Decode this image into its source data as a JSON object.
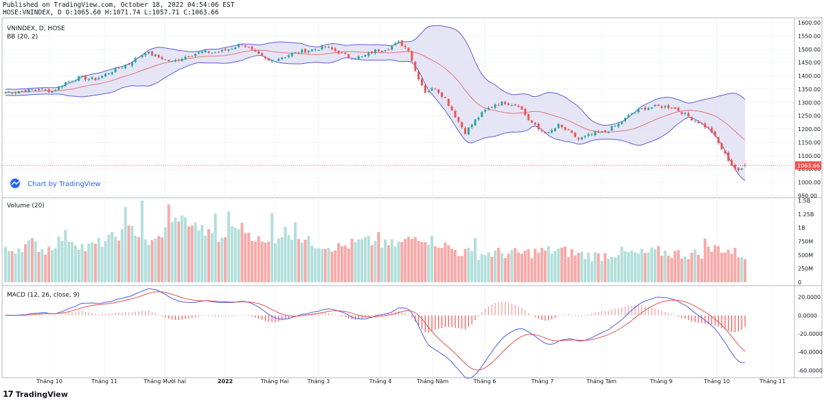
{
  "header": {
    "published": "Published on TradingView.com, October 18, 2022 04:54:06 EST",
    "symbol_line": "HOSE:VNINDEX, D O:1065.60 H:1071.74 L:1057.71 C:1063.66"
  },
  "footer": {
    "mark": "17",
    "brand": "TradingView"
  },
  "colors": {
    "up": "#26a69a",
    "down": "#ef5350",
    "up_volume": "#b2dfdb",
    "down_volume": "#f7a9a7",
    "bb_fill": "#e0e0f4",
    "bb_band": "#5b5bd6",
    "bb_basis": "#e57373",
    "macd_line": "#4a5ae8",
    "signal_line": "#e05050",
    "price_line": "#ef5350",
    "grid": "#f0f3fa",
    "border": "#b2b5be"
  },
  "chart_data": [
    {
      "type": "candlestick",
      "title": "VNINDEX, D, HOSE",
      "indicator_label": "BB (20, 2)",
      "watermark": "Chart by TradingView",
      "last_price": 1063.66,
      "last_price_label": "1063.66",
      "ylim": [
        950,
        1600
      ],
      "y_ticks": [
        "1600.00",
        "1550.00",
        "1500.00",
        "1450.00",
        "1400.00",
        "1350.00",
        "1300.00",
        "1250.00",
        "1200.00",
        "1150.00",
        "1100.00",
        "1050.00",
        "1000.00",
        "950.00"
      ],
      "x_labels": [
        "Tháng 10",
        "Tháng 11",
        "Tháng Mười hai",
        "2022",
        "Tháng Hai",
        "Tháng 3",
        "Tháng 4",
        "Tháng Năm",
        "Tháng 6",
        "Tháng 7",
        "Tháng Tám",
        "Tháng 9",
        "Tháng 10",
        "Tháng 11"
      ],
      "close_anchors": [
        [
          0,
          1338
        ],
        [
          10,
          1350
        ],
        [
          14,
          1342
        ],
        [
          18,
          1375
        ],
        [
          22,
          1393
        ],
        [
          27,
          1388
        ],
        [
          32,
          1418
        ],
        [
          37,
          1445
        ],
        [
          42,
          1490
        ],
        [
          46,
          1470
        ],
        [
          50,
          1452
        ],
        [
          55,
          1478
        ],
        [
          59,
          1490
        ],
        [
          63,
          1488
        ],
        [
          67,
          1500
        ],
        [
          71,
          1520
        ],
        [
          75,
          1485
        ],
        [
          79,
          1455
        ],
        [
          83,
          1470
        ],
        [
          88,
          1490
        ],
        [
          92,
          1498
        ],
        [
          96,
          1508
        ],
        [
          100,
          1490
        ],
        [
          103,
          1470
        ],
        [
          107,
          1470
        ],
        [
          111,
          1495
        ],
        [
          115,
          1505
        ],
        [
          118,
          1525
        ],
        [
          121,
          1500
        ],
        [
          123,
          1420
        ],
        [
          126,
          1340
        ],
        [
          129,
          1355
        ],
        [
          132,
          1315
        ],
        [
          135,
          1250
        ],
        [
          138,
          1188
        ],
        [
          141,
          1233
        ],
        [
          144,
          1270
        ],
        [
          147,
          1295
        ],
        [
          150,
          1300
        ],
        [
          154,
          1290
        ],
        [
          157,
          1236
        ],
        [
          160,
          1199
        ],
        [
          163,
          1184
        ],
        [
          166,
          1213
        ],
        [
          169,
          1190
        ],
        [
          172,
          1162
        ],
        [
          176,
          1180
        ],
        [
          180,
          1190
        ],
        [
          184,
          1218
        ],
        [
          188,
          1260
        ],
        [
          192,
          1280
        ],
        [
          196,
          1285
        ],
        [
          200,
          1283
        ],
        [
          203,
          1264
        ],
        [
          206,
          1240
        ],
        [
          209,
          1220
        ],
        [
          212,
          1190
        ],
        [
          215,
          1125
        ],
        [
          218,
          1065
        ],
        [
          220,
          1040
        ],
        [
          222,
          1063.66
        ]
      ],
      "bb_period": 20,
      "bb_mult": 2
    },
    {
      "type": "bar",
      "title": "Volume (20)",
      "ylim": [
        0,
        1500000000
      ],
      "y_ticks": [
        "1.5B",
        "1.25B",
        "1B",
        "750M",
        "500M",
        "250M",
        "0"
      ],
      "volume_anchors": [
        [
          0,
          560
        ],
        [
          8,
          720
        ],
        [
          12,
          580
        ],
        [
          18,
          860
        ],
        [
          24,
          620
        ],
        [
          30,
          760
        ],
        [
          38,
          980
        ],
        [
          44,
          690
        ],
        [
          52,
          1200
        ],
        [
          58,
          1000
        ],
        [
          64,
          760
        ],
        [
          70,
          1050
        ],
        [
          78,
          680
        ],
        [
          84,
          940
        ],
        [
          92,
          720
        ],
        [
          100,
          640
        ],
        [
          108,
          760
        ],
        [
          114,
          680
        ],
        [
          118,
          700
        ],
        [
          124,
          850
        ],
        [
          130,
          720
        ],
        [
          136,
          560
        ],
        [
          142,
          520
        ],
        [
          148,
          540
        ],
        [
          154,
          520
        ],
        [
          160,
          560
        ],
        [
          166,
          590
        ],
        [
          172,
          510
        ],
        [
          178,
          480
        ],
        [
          184,
          550
        ],
        [
          190,
          510
        ],
        [
          196,
          560
        ],
        [
          202,
          520
        ],
        [
          208,
          520
        ],
        [
          214,
          640
        ],
        [
          220,
          520
        ],
        [
          222,
          500
        ]
      ],
      "volume_spikes": [
        [
          36,
          1380
        ],
        [
          41,
          1500
        ],
        [
          49,
          1430
        ],
        [
          63,
          1260
        ],
        [
          67,
          1300
        ],
        [
          80,
          1270
        ],
        [
          87,
          1100
        ],
        [
          112,
          920
        ],
        [
          141,
          810
        ],
        [
          210,
          800
        ]
      ]
    },
    {
      "type": "line",
      "title": "MACD (12, 26, close, 9)",
      "ylim": [
        -65,
        28
      ],
      "y_ticks": [
        "20.0000",
        "0.0000",
        "-20.0000",
        "-40.0000",
        "-60.0000"
      ],
      "series": [
        {
          "values": []
        },
        {
          "values": []
        },
        {
          "values": []
        }
      ]
    }
  ]
}
